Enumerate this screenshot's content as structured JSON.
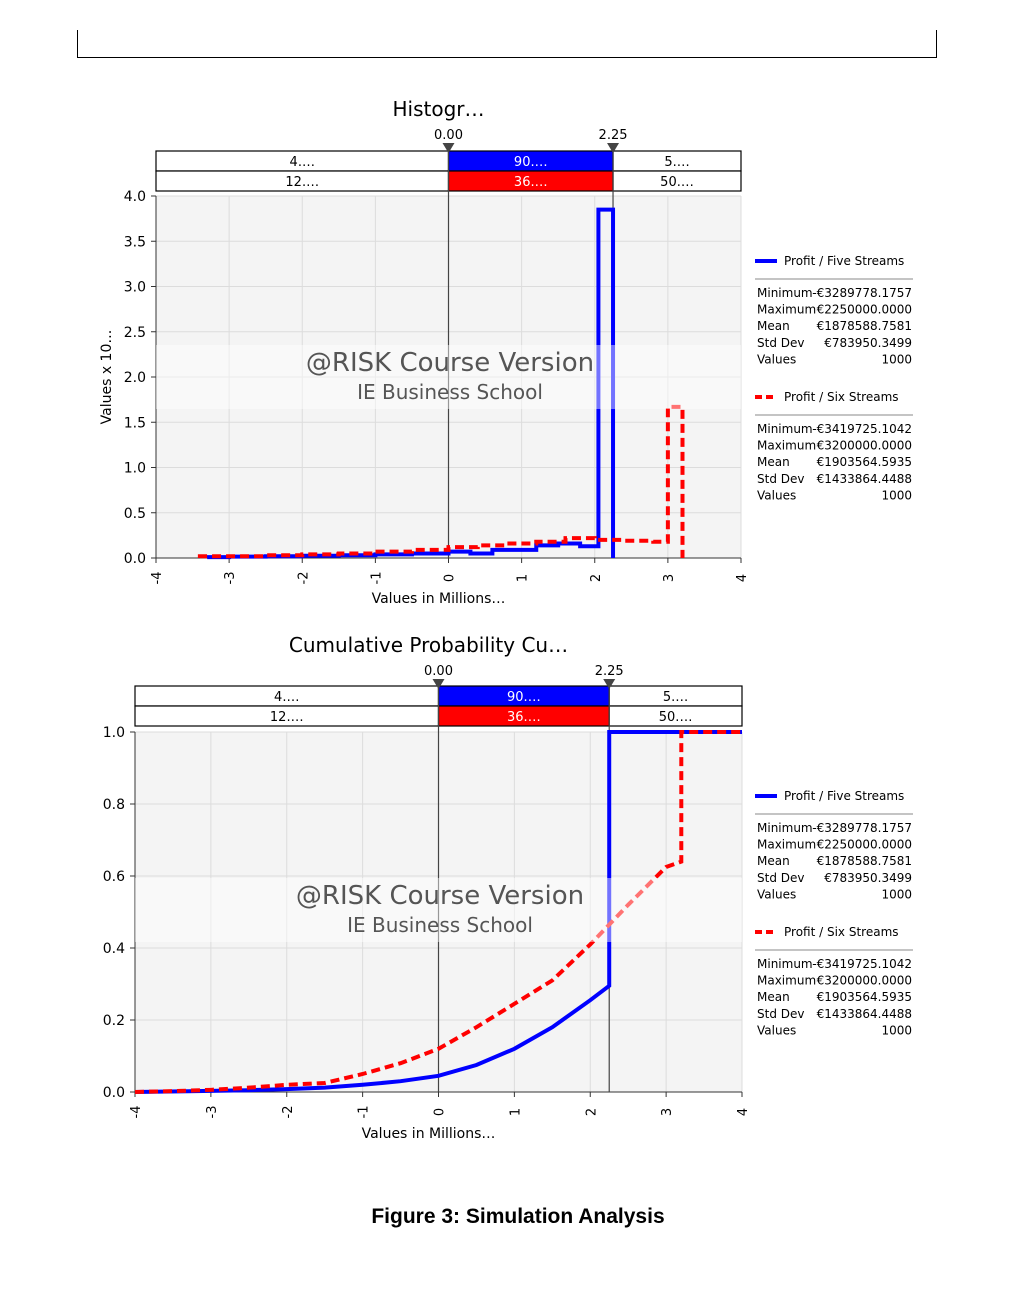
{
  "figure_caption": "Figure 3: Simulation Analysis",
  "watermark": {
    "line1": "@RISK Course Version",
    "line2": "IE Business School"
  },
  "colors": {
    "series1": "#0000ff",
    "series2": "#ff0000",
    "plot_bg": "#f4f4f4",
    "grid": "#dcdcdc"
  },
  "legend": [
    {
      "name": "Profit / Five Streams",
      "stats": [
        {
          "label": "Minimum",
          "value": "-€3289778.1757"
        },
        {
          "label": "Maximum",
          "value": "€2250000.0000"
        },
        {
          "label": "Mean",
          "value": "€1878588.7581"
        },
        {
          "label": "Std Dev",
          "value": "€783950.3499"
        },
        {
          "label": "Values",
          "value": "1000"
        }
      ]
    },
    {
      "name": "Profit / Six Streams",
      "stats": [
        {
          "label": "Minimum",
          "value": "-€3419725.1042"
        },
        {
          "label": "Maximum",
          "value": "€3200000.0000"
        },
        {
          "label": "Mean",
          "value": "€1903564.5935"
        },
        {
          "label": "Std Dev",
          "value": "€1433864.4488"
        },
        {
          "label": "Values",
          "value": "1000"
        }
      ]
    }
  ],
  "chart_data": [
    {
      "type": "histogram",
      "title": "Histogr…",
      "xlabel": "Values in Millions…",
      "ylabel": "Values x 10…",
      "xlim": [
        -4,
        4
      ],
      "ylim": [
        0,
        4
      ],
      "x_ticks": [
        "-4",
        "-3",
        "-2",
        "-1",
        "0",
        "1",
        "2",
        "3",
        "4"
      ],
      "y_ticks": [
        "0.0",
        "0.5",
        "1.0",
        "1.5",
        "2.0",
        "2.5",
        "3.0",
        "3.5",
        "4.0"
      ],
      "grid": true,
      "legend_position": "right",
      "delimiters": [
        {
          "x": 0.0,
          "label": "0.00"
        },
        {
          "x": 2.25,
          "label": "2.25"
        }
      ],
      "band_labels": [
        [
          "4.…",
          "90.…",
          "5.…"
        ],
        [
          "12.…",
          "36.…",
          "50.…"
        ]
      ],
      "series": [
        {
          "name": "Profit / Five Streams",
          "x": [
            -3.3,
            -3.0,
            -2.5,
            -2.0,
            -1.5,
            -1.0,
            -0.5,
            0.0,
            0.3,
            0.6,
            0.9,
            1.2,
            1.5,
            1.8,
            2.05,
            2.25
          ],
          "y": [
            0.01,
            0.015,
            0.02,
            0.025,
            0.03,
            0.04,
            0.05,
            0.07,
            0.05,
            0.09,
            0.09,
            0.14,
            0.16,
            0.13,
            3.85
          ]
        },
        {
          "name": "Profit / Six Streams",
          "x": [
            -3.4,
            -3.0,
            -2.5,
            -2.0,
            -1.5,
            -1.0,
            -0.5,
            0.0,
            0.4,
            0.8,
            1.2,
            1.6,
            2.0,
            2.4,
            2.8,
            3.0,
            3.2
          ],
          "y": [
            0.02,
            0.02,
            0.03,
            0.04,
            0.05,
            0.07,
            0.09,
            0.12,
            0.14,
            0.16,
            0.18,
            0.22,
            0.2,
            0.19,
            0.18,
            1.67
          ]
        }
      ]
    },
    {
      "type": "line",
      "title": "Cumulative Probability Cu…",
      "xlabel": "Values in Millions…",
      "xlim": [
        -4,
        4
      ],
      "ylim": [
        0,
        1
      ],
      "x_ticks": [
        "-4",
        "-3",
        "-2",
        "-1",
        "0",
        "1",
        "2",
        "3",
        "4"
      ],
      "y_ticks": [
        "0.0",
        "0.2",
        "0.4",
        "0.6",
        "0.8",
        "1.0"
      ],
      "grid": true,
      "legend_position": "right",
      "delimiters": [
        {
          "x": 0.0,
          "label": "0.00"
        },
        {
          "x": 2.25,
          "label": "2.25"
        }
      ],
      "band_labels": [
        [
          "4.…",
          "90.…",
          "5.…"
        ],
        [
          "12.…",
          "36.…",
          "50.…"
        ]
      ],
      "series": [
        {
          "name": "Profit / Five Streams",
          "x": [
            -4,
            -3.3,
            -2.5,
            -2.0,
            -1.5,
            -1.0,
            -0.5,
            0.0,
            0.5,
            1.0,
            1.5,
            2.0,
            2.25,
            2.25,
            4.0
          ],
          "y": [
            0,
            0.002,
            0.005,
            0.008,
            0.012,
            0.02,
            0.03,
            0.045,
            0.075,
            0.12,
            0.18,
            0.255,
            0.295,
            1.0,
            1.0
          ]
        },
        {
          "name": "Profit / Six Streams",
          "x": [
            -4,
            -3.4,
            -3.0,
            -2.5,
            -2.0,
            -1.5,
            -1.0,
            -0.5,
            0.0,
            0.5,
            1.0,
            1.5,
            2.0,
            2.5,
            3.0,
            3.2,
            3.2,
            4.0
          ],
          "y": [
            0,
            0.003,
            0.006,
            0.012,
            0.02,
            0.025,
            0.05,
            0.08,
            0.12,
            0.18,
            0.245,
            0.31,
            0.41,
            0.52,
            0.625,
            0.64,
            1.0,
            1.0
          ]
        }
      ]
    }
  ]
}
